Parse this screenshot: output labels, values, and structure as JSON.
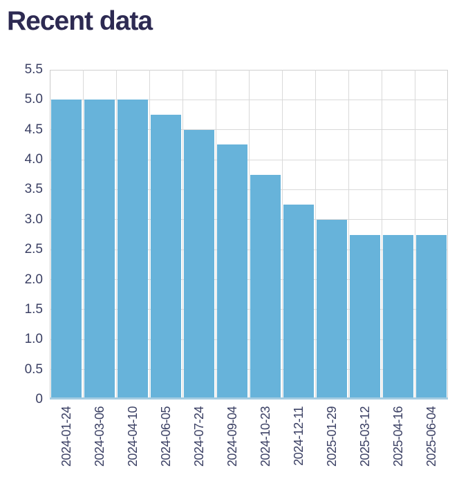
{
  "page": {
    "title": "Recent data"
  },
  "chart_data": {
    "type": "bar",
    "title": "Recent data",
    "categories": [
      "2024-01-24",
      "2024-03-06",
      "2024-04-10",
      "2024-06-05",
      "2024-07-24",
      "2024-09-04",
      "2024-10-23",
      "2024-12-11",
      "2025-01-29",
      "2025-03-12",
      "2025-04-16",
      "2025-06-04"
    ],
    "values": [
      5.0,
      5.0,
      5.0,
      4.75,
      4.5,
      4.25,
      3.75,
      3.25,
      3.0,
      2.75,
      2.75,
      2.75
    ],
    "xlabel": "",
    "ylabel": "",
    "ylim": [
      0,
      5.5
    ],
    "ytick_step": 0.5,
    "ytick_labels": [
      "5.5",
      "5.0",
      "4.5",
      "4.0",
      "3.5",
      "3.0",
      "2.5",
      "2.0",
      "1.5",
      "1.0",
      "0.5",
      "0"
    ],
    "grid": "both",
    "legend": "none",
    "colors": {
      "bar": "#67b3da",
      "title": "#2d2a52",
      "tick": "#3a3f63",
      "grid": "#d9d9d9",
      "baseline_band": "#a5cce2"
    }
  }
}
